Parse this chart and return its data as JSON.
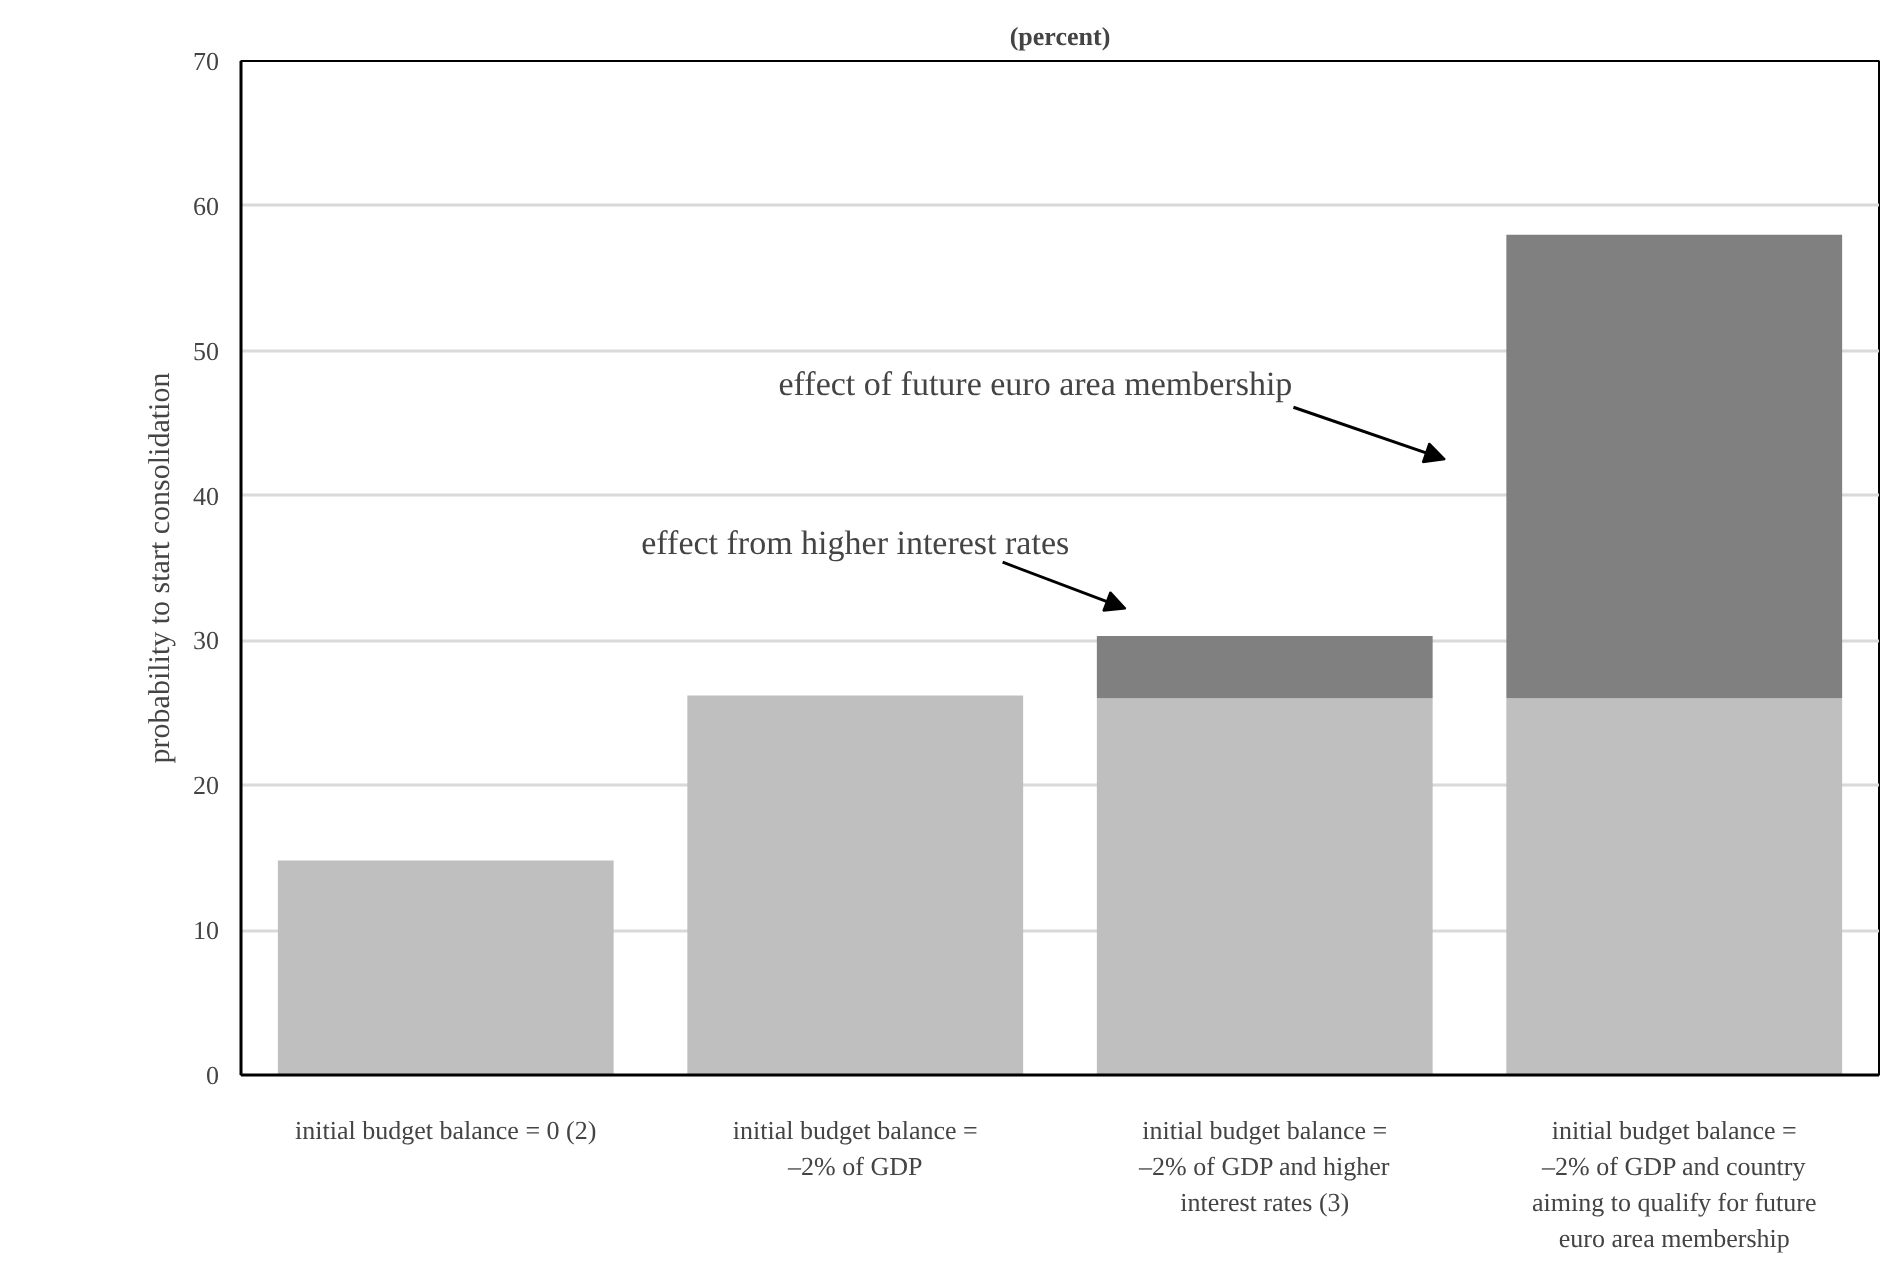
{
  "chart_data": {
    "type": "bar",
    "title": "(percent)",
    "ylabel": "probability to start consolidation",
    "categories": [
      "initial budget balance = 0 (2)",
      "initial budget balance =\n–2% of GDP",
      "initial budget balance =\n–2% of GDP and higher\ninterest rates (3)",
      "initial budget balance =\n–2% of GDP and country\naiming to qualify for future\neuro area membership"
    ],
    "stacked": true,
    "series": [
      {
        "color": "#bfbfbf",
        "values": [
          14.8,
          26.2,
          26.0,
          26.0
        ]
      },
      {
        "color": "#808080",
        "values": [
          0,
          0,
          4.3,
          32.0
        ]
      }
    ],
    "ylim": [
      0,
      70
    ],
    "yticks": [
      0,
      10,
      20,
      30,
      40,
      50,
      60,
      70
    ],
    "grid": "y",
    "annotations": [
      "effect of future euro area membership",
      "effect from higher interest rates"
    ]
  }
}
